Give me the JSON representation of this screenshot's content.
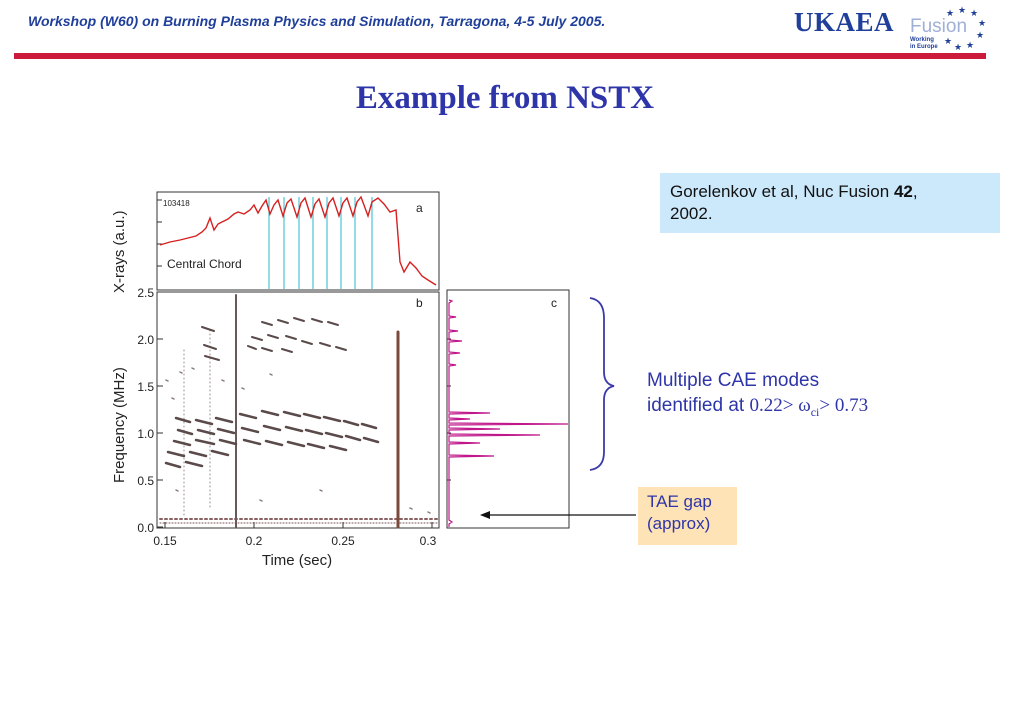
{
  "header": {
    "workshop": "Workshop (W60) on Burning Plasma Physics and Simulation, Tarragona, 4-5 July 2005."
  },
  "logo": {
    "name": "UKAEA",
    "fusion": "Fusion",
    "sub_line1": "Working",
    "sub_line2": "in Europe"
  },
  "title": "Example from NSTX",
  "reference": {
    "text_before": "Gorelenkov et al, Nuc Fusion ",
    "volume": "42",
    "text_after": ",",
    "year": "2002."
  },
  "cae_note": {
    "line1": "Multiple CAE modes",
    "line2": "identified at",
    "math_left": "0.22>",
    "omega": "ω",
    "sub": "ci",
    "math_right": "> 0.73"
  },
  "tae_note": {
    "line1": "TAE gap",
    "line2": "(approx)"
  },
  "figure": {
    "panel_a": {
      "label": "a",
      "shot": "103418",
      "annotation": "Central Chord",
      "ylabel": "X-rays (a.u.)"
    },
    "panel_b": {
      "label": "b",
      "ylabel": "Frequency (MHz)",
      "xlabel": "Time (sec)",
      "yticks": [
        "2.5",
        "2.0",
        "1.5",
        "1.0",
        "0.5",
        "0.0"
      ],
      "xticks": [
        "0.15",
        "0.2",
        "0.25",
        "0.3"
      ]
    },
    "panel_c": {
      "label": "c"
    }
  }
}
